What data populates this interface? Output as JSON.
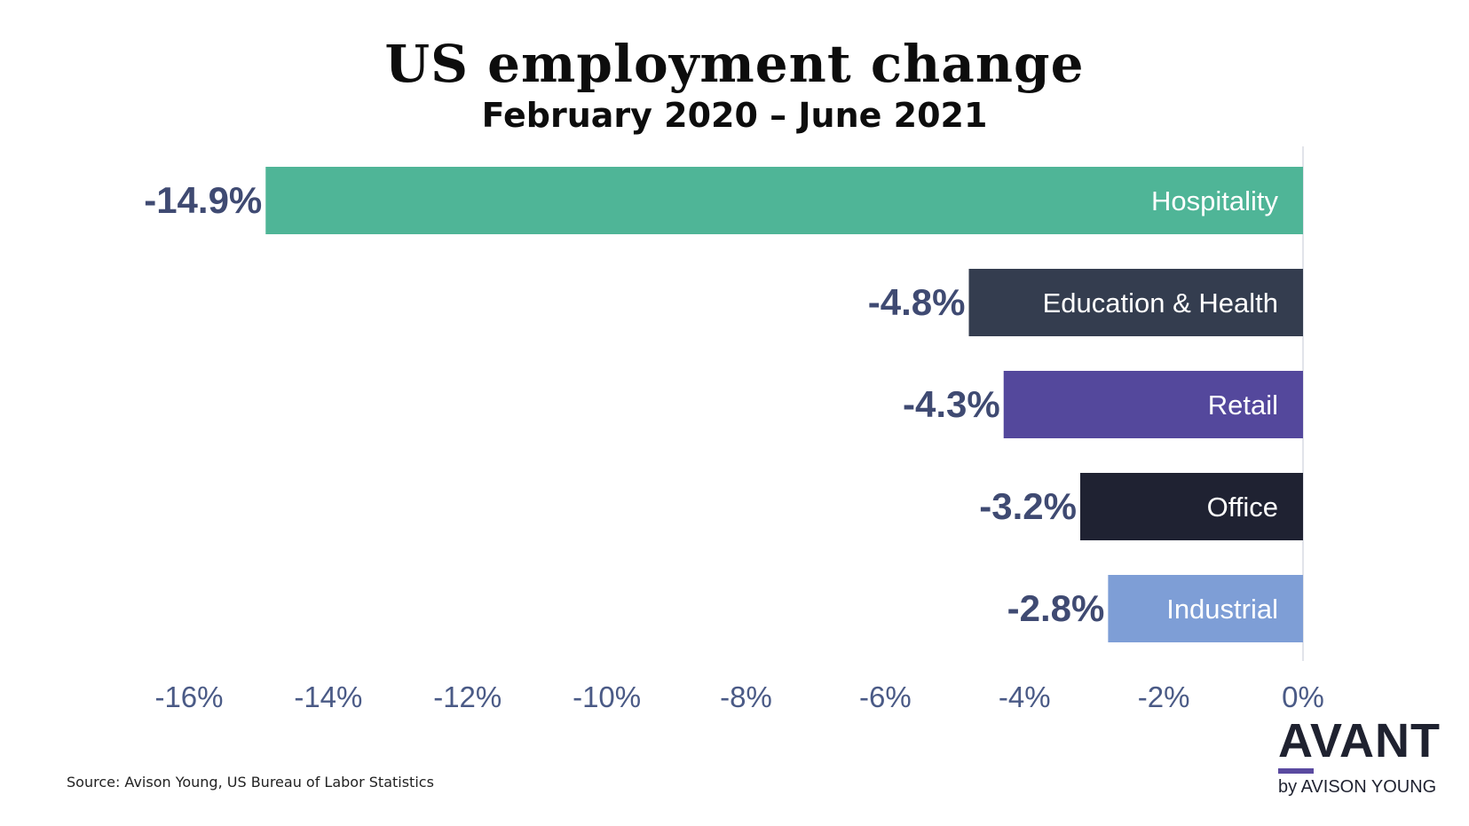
{
  "title": "US employment change",
  "subtitle": "February 2020 – June 2021",
  "source": "Source: Avison Young, US Bureau of Labor Statistics",
  "logo": {
    "main": "AVANT",
    "sub": "by AVISON YOUNG"
  },
  "chart_data": {
    "type": "bar",
    "orientation": "horizontal",
    "categories": [
      "Hospitality",
      "Education & Health",
      "Retail",
      "Office",
      "Industrial"
    ],
    "values": [
      -14.9,
      -4.8,
      -4.3,
      -3.2,
      -2.8
    ],
    "value_labels": [
      "-14.9%",
      "-4.8%",
      "-4.3%",
      "-3.2%",
      "-2.8%"
    ],
    "colors": [
      "#4fb597",
      "#343d4f",
      "#54489c",
      "#1f2232",
      "#7e9ed6"
    ],
    "xlim": [
      -16,
      0
    ],
    "x_ticks": [
      -16,
      -14,
      -12,
      -10,
      -8,
      -6,
      -4,
      -2,
      0
    ],
    "x_tick_labels": [
      "-16%",
      "-14%",
      "-12%",
      "-10%",
      "-8%",
      "-6%",
      "-4%",
      "-2%",
      "0%"
    ],
    "xlabel": "",
    "ylabel": "",
    "grid": false,
    "legend": "none"
  }
}
